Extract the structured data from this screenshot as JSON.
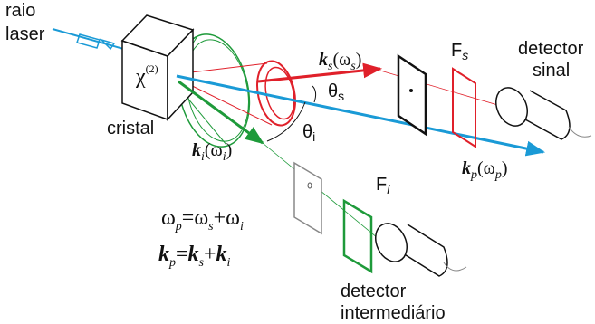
{
  "laser": {
    "lines": [
      "raio",
      "laser"
    ]
  },
  "crystal": {
    "symbol": [
      "χ",
      "(2)"
    ],
    "label": "cristal"
  },
  "signal": {
    "wavevector": [
      "k",
      "s",
      "(ω",
      "s",
      ")"
    ],
    "angle": [
      "θ",
      "s"
    ],
    "filter": [
      "F",
      "s"
    ],
    "detector": [
      "detector",
      "sinal"
    ]
  },
  "idler": {
    "wavevector": [
      "k",
      "i",
      "(ω",
      "i",
      ")"
    ],
    "angle": [
      "θ",
      "i"
    ],
    "filter": [
      "F",
      "i"
    ],
    "detector": [
      "detector",
      "intermediário"
    ]
  },
  "pump": {
    "wavevector": [
      "k",
      "p",
      "(ω",
      "p",
      ")"
    ]
  },
  "equations": [
    [
      "ω",
      "p",
      "=ω",
      "s",
      "+ω",
      "i"
    ],
    [
      "k",
      "p",
      "=",
      "k",
      "s",
      "+",
      "k",
      "i"
    ]
  ]
}
